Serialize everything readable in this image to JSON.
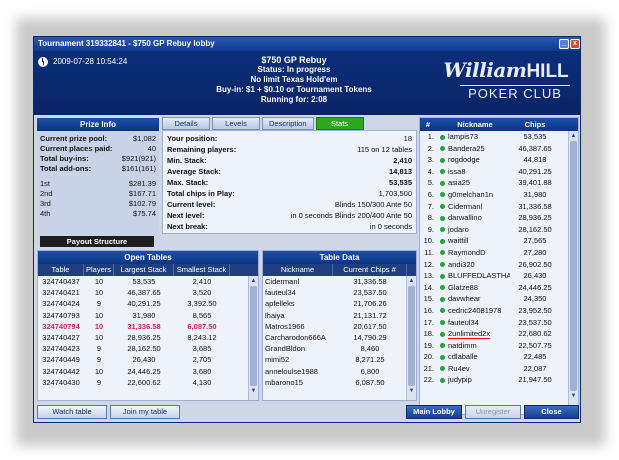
{
  "window": {
    "title": "Tournament 319332841 - $750 GP Rebuy lobby",
    "minimize": "_",
    "close": "x"
  },
  "header": {
    "datetime": "2009-07-28 10:54:24",
    "line1": "$750 GP Rebuy",
    "line2": "Status: In progress",
    "line3": "No limit Texas Hold'em",
    "line4": "Buy-in: $1 + $0.10 or Tournament Tokens",
    "line5": "Running for: 2:08",
    "logo_top": "William",
    "logo_top_bold": "HILL",
    "logo_bottom": "POKER CLUB"
  },
  "prize_info": {
    "title": "Prize Info",
    "rows": [
      {
        "label": "Current prize pool:",
        "value": "$1,082"
      },
      {
        "label": "Current places paid:",
        "value": "40"
      },
      {
        "label": "Total buy-ins:",
        "value": "$921(921)"
      },
      {
        "label": "Total add-ons:",
        "value": "$161(161)"
      }
    ],
    "places": [
      {
        "label": "1st",
        "value": "$281.39"
      },
      {
        "label": "2nd",
        "value": "$167.71"
      },
      {
        "label": "3rd",
        "value": "$102.79"
      },
      {
        "label": "4th",
        "value": "$75.74"
      }
    ],
    "payout_button": "Payout Structure"
  },
  "tabs": [
    {
      "label": "Details",
      "active": false
    },
    {
      "label": "Levels",
      "active": false
    },
    {
      "label": "Description",
      "active": false
    },
    {
      "label": "Stats",
      "active": true
    }
  ],
  "stats": [
    {
      "label": "Your position:",
      "value": "18",
      "bold": false
    },
    {
      "label": "Remaining players:",
      "value": "115 on 12 tables",
      "bold": false
    },
    {
      "label": "Min. Stack:",
      "value": "2,410",
      "bold": true
    },
    {
      "label": "Average Stack:",
      "value": "14,813",
      "bold": true
    },
    {
      "label": "Max. Stack:",
      "value": "53,535",
      "bold": true
    },
    {
      "label": "Total chips in Play:",
      "value": "1,703,500",
      "bold": false
    },
    {
      "label": "Current level:",
      "value": "Blinds 150/300 Ante 50",
      "bold": false
    },
    {
      "label": "Next level:",
      "value": "in 0 seconds Blinds 200/400 Ante 50",
      "bold": false
    },
    {
      "label": "Next break:",
      "value": "in 0 seconds",
      "bold": false
    }
  ],
  "players": {
    "headers": {
      "num": "#",
      "nick": "Nickname",
      "chips": "Chips"
    },
    "rows": [
      {
        "num": "1.",
        "nick": "lampis73",
        "chips": "53,535"
      },
      {
        "num": "2.",
        "nick": "Bandera25",
        "chips": "46,387.65"
      },
      {
        "num": "3.",
        "nick": "rogdodge",
        "chips": "44,818"
      },
      {
        "num": "4.",
        "nick": "issa8",
        "chips": "40,291.25"
      },
      {
        "num": "5.",
        "nick": "asia25",
        "chips": "39,401.88"
      },
      {
        "num": "6.",
        "nick": "g0melchan1n",
        "chips": "31,980"
      },
      {
        "num": "7.",
        "nick": "Cidermanl",
        "chips": "31,336.58"
      },
      {
        "num": "8.",
        "nick": "darwallino",
        "chips": "28,936.25"
      },
      {
        "num": "9.",
        "nick": "jodaro",
        "chips": "28,162.50"
      },
      {
        "num": "10.",
        "nick": "waittill",
        "chips": "27,565"
      },
      {
        "num": "11.",
        "nick": "RaymondD",
        "chips": "27,280"
      },
      {
        "num": "12.",
        "nick": "andi320",
        "chips": "26,902.50"
      },
      {
        "num": "13.",
        "nick": "BLUFFEDLASTHAN",
        "chips": "26,430"
      },
      {
        "num": "14.",
        "nick": "Glatze88",
        "chips": "24,446.25"
      },
      {
        "num": "15.",
        "nick": "davwhear",
        "chips": "24,350"
      },
      {
        "num": "16.",
        "nick": "cedric24081978",
        "chips": "23,952.50"
      },
      {
        "num": "17.",
        "nick": "fauteul34",
        "chips": "23,537.50"
      },
      {
        "num": "18.",
        "nick": "2unlimited2x",
        "chips": "22,680.62"
      },
      {
        "num": "19.",
        "nick": "natdimm",
        "chips": "22,507.75"
      },
      {
        "num": "20.",
        "nick": "cdlaballe",
        "chips": "22,485"
      },
      {
        "num": "21.",
        "nick": "Ru4ev",
        "chips": "22,087"
      },
      {
        "num": "22.",
        "nick": "judypip",
        "chips": "21,947.50"
      }
    ],
    "highlight_index": 17,
    "status_color": "#22a336"
  },
  "open_tables": {
    "title": "Open Tables",
    "headers": [
      "Table",
      "Players",
      "Largest Stack",
      "Smallest Stack"
    ],
    "rows": [
      [
        "324740437",
        "10",
        "53,535",
        "2,410"
      ],
      [
        "324740421",
        "10",
        "46,387.65",
        "3,520"
      ],
      [
        "324740424",
        "9",
        "40,291.25",
        "3,392.50"
      ],
      [
        "324740793",
        "10",
        "31,980",
        "8,565"
      ],
      [
        "324740794",
        "10",
        "31,336.58",
        "6,087.50"
      ],
      [
        "324740427",
        "10",
        "28,936.25",
        "8,243.12"
      ],
      [
        "324740423",
        "9",
        "28,162.50",
        "3,685"
      ],
      [
        "324740449",
        "9",
        "26,430",
        "2,705"
      ],
      [
        "324740442",
        "10",
        "24,446.25",
        "3,680"
      ],
      [
        "324740430",
        "9",
        "22,600.62",
        "4,130"
      ]
    ],
    "selected_index": 4
  },
  "table_data": {
    "title": "Table Data",
    "headers": [
      "Nickname",
      "Current Chips #"
    ],
    "rows": [
      [
        "Cidermanl",
        "31,336.58"
      ],
      [
        "fauteul34",
        "23,537.50"
      ],
      [
        "apfelleks",
        "21,706.26"
      ],
      [
        "lhaiya",
        "21,131.72"
      ],
      [
        "Matros1966",
        "20,617.50"
      ],
      [
        "Carcharodon666A",
        "14,790.29"
      ],
      [
        "GrandBldon",
        "8,460"
      ],
      [
        "mimi52",
        "8,271.25"
      ],
      [
        "anneloulse1988",
        "6,800"
      ],
      [
        "mbarono15",
        "6,087.50"
      ]
    ]
  },
  "buttons": {
    "watch_table": "Watch table",
    "join_table": "Join my table",
    "main_lobby": "Main Lobby",
    "unregister": "Unregister",
    "close": "Close"
  },
  "colors": {
    "header_bg": "#0b2e7a",
    "active_tab": "#2ca81e",
    "selected_row": "#d0245a"
  }
}
